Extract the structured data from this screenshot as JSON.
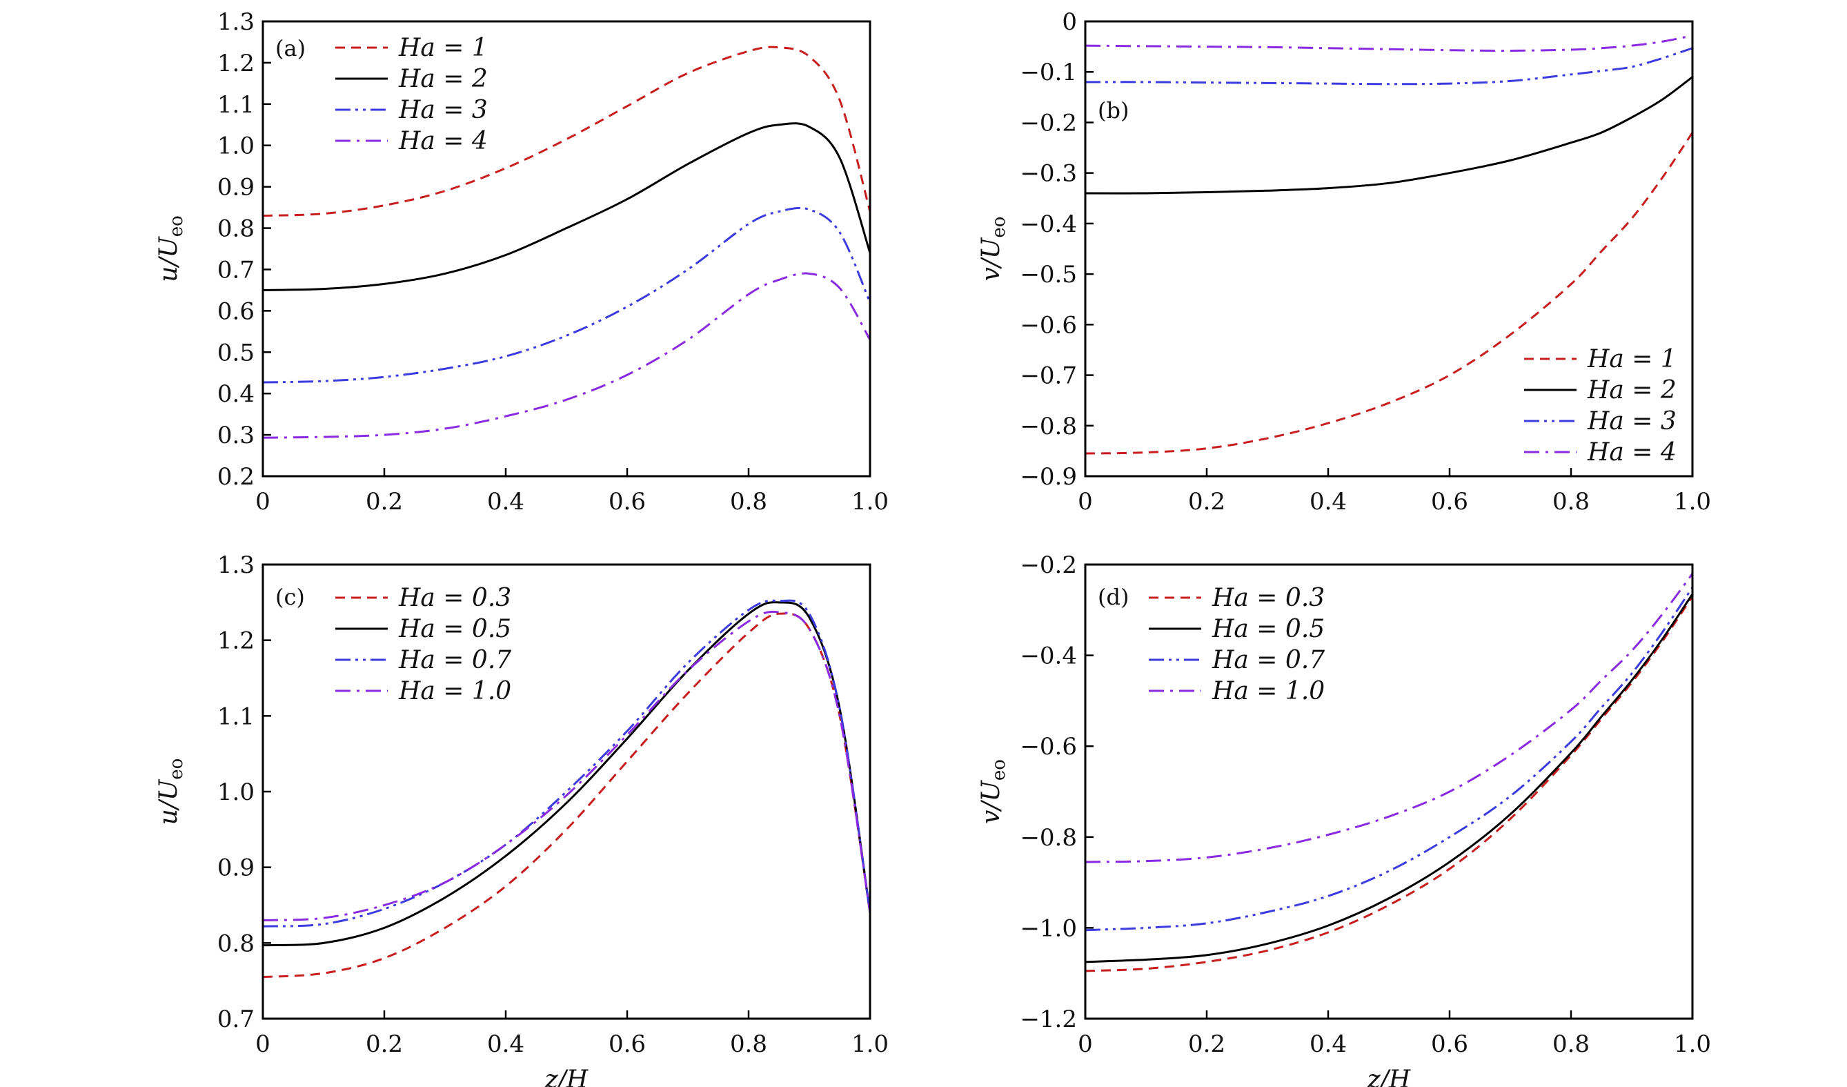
{
  "chart_data": [
    {
      "type": "line",
      "panel_label": "(a)",
      "xlabel": "",
      "ylabel": {
        "main": "u/U",
        "sub": "eo"
      },
      "xlim": [
        0,
        1.0
      ],
      "ylim": [
        0.2,
        1.3
      ],
      "xticks": [
        "0",
        "0.2",
        "0.4",
        "0.6",
        "0.8",
        "1.0"
      ],
      "yticks": [
        "0.2",
        "0.3",
        "0.4",
        "0.5",
        "0.6",
        "0.7",
        "0.8",
        "0.9",
        "1.0",
        "1.1",
        "1.2",
        "1.3"
      ],
      "legend_position": "top-left",
      "x": [
        0,
        0.1,
        0.2,
        0.3,
        0.4,
        0.5,
        0.6,
        0.7,
        0.8,
        0.85,
        0.9,
        0.95,
        1.0
      ],
      "series": [
        {
          "name": "Ha = 1",
          "color": "#c81e1e",
          "style": "dashed",
          "values": [
            0.83,
            0.835,
            0.855,
            0.89,
            0.945,
            1.015,
            1.095,
            1.175,
            1.228,
            1.237,
            1.215,
            1.11,
            0.84
          ]
        },
        {
          "name": "Ha = 2",
          "color": "#000000",
          "style": "solid",
          "values": [
            0.65,
            0.653,
            0.665,
            0.69,
            0.735,
            0.8,
            0.87,
            0.955,
            1.03,
            1.05,
            1.045,
            0.97,
            0.74
          ]
        },
        {
          "name": "Ha = 3",
          "color": "#3b3be0",
          "style": "dash-dot-dot",
          "values": [
            0.427,
            0.43,
            0.44,
            0.46,
            0.49,
            0.54,
            0.61,
            0.7,
            0.81,
            0.84,
            0.845,
            0.79,
            0.62
          ]
        },
        {
          "name": "Ha = 4",
          "color": "#8a2be2",
          "style": "dash-dot",
          "values": [
            0.293,
            0.295,
            0.3,
            0.315,
            0.345,
            0.385,
            0.445,
            0.53,
            0.64,
            0.675,
            0.69,
            0.655,
            0.53
          ]
        }
      ]
    },
    {
      "type": "line",
      "panel_label": "(b)",
      "xlabel": "",
      "ylabel": {
        "main": "v/U",
        "sub": "eo"
      },
      "xlim": [
        0,
        1.0
      ],
      "ylim": [
        -0.9,
        0
      ],
      "xticks": [
        "0",
        "0.2",
        "0.4",
        "0.6",
        "0.8",
        "1.0"
      ],
      "yticks": [
        "−0.9",
        "−0.8",
        "−0.7",
        "−0.6",
        "−0.5",
        "−0.4",
        "−0.3",
        "−0.2",
        "−0.1",
        "0"
      ],
      "legend_position": "bottom-right",
      "x": [
        0,
        0.1,
        0.2,
        0.3,
        0.4,
        0.5,
        0.6,
        0.7,
        0.8,
        0.85,
        0.9,
        0.95,
        1.0
      ],
      "series": [
        {
          "name": "Ha = 1",
          "color": "#c81e1e",
          "style": "dashed",
          "values": [
            -0.855,
            -0.853,
            -0.845,
            -0.825,
            -0.795,
            -0.755,
            -0.7,
            -0.62,
            -0.52,
            -0.455,
            -0.39,
            -0.31,
            -0.22
          ]
        },
        {
          "name": "Ha = 2",
          "color": "#000000",
          "style": "solid",
          "values": [
            -0.34,
            -0.34,
            -0.338,
            -0.335,
            -0.33,
            -0.32,
            -0.3,
            -0.275,
            -0.24,
            -0.22,
            -0.19,
            -0.155,
            -0.11
          ]
        },
        {
          "name": "Ha = 3",
          "color": "#3b3be0",
          "style": "dash-dot-dot",
          "values": [
            -0.12,
            -0.12,
            -0.121,
            -0.122,
            -0.123,
            -0.124,
            -0.123,
            -0.118,
            -0.105,
            -0.098,
            -0.09,
            -0.073,
            -0.053
          ]
        },
        {
          "name": "Ha = 4",
          "color": "#8a2be2",
          "style": "dash-dot",
          "values": [
            -0.048,
            -0.049,
            -0.05,
            -0.051,
            -0.053,
            -0.055,
            -0.057,
            -0.058,
            -0.056,
            -0.053,
            -0.048,
            -0.04,
            -0.028
          ]
        }
      ]
    },
    {
      "type": "line",
      "panel_label": "(c)",
      "xlabel": "z/H",
      "ylabel": {
        "main": "u/U",
        "sub": "eo"
      },
      "xlim": [
        0,
        1.0
      ],
      "ylim": [
        0.7,
        1.3
      ],
      "xticks": [
        "0",
        "0.2",
        "0.4",
        "0.6",
        "0.8",
        "1.0"
      ],
      "yticks": [
        "0.7",
        "0.8",
        "0.9",
        "1.0",
        "1.1",
        "1.2",
        "1.3"
      ],
      "legend_position": "top-left",
      "x": [
        0,
        0.1,
        0.2,
        0.3,
        0.4,
        0.5,
        0.6,
        0.7,
        0.8,
        0.85,
        0.9,
        0.95,
        1.0
      ],
      "series": [
        {
          "name": "Ha = 0.3",
          "color": "#c81e1e",
          "style": "dashed",
          "values": [
            0.755,
            0.76,
            0.78,
            0.82,
            0.875,
            0.95,
            1.04,
            1.13,
            1.21,
            1.235,
            1.215,
            1.1,
            0.84
          ]
        },
        {
          "name": "Ha = 0.5",
          "color": "#000000",
          "style": "solid",
          "values": [
            0.797,
            0.8,
            0.82,
            0.86,
            0.915,
            0.985,
            1.07,
            1.16,
            1.235,
            1.25,
            1.23,
            1.11,
            0.84
          ]
        },
        {
          "name": "Ha = 0.7",
          "color": "#3b3be0",
          "style": "dash-dot-dot",
          "values": [
            0.822,
            0.825,
            0.845,
            0.88,
            0.93,
            1.0,
            1.08,
            1.17,
            1.24,
            1.252,
            1.235,
            1.11,
            0.84
          ]
        },
        {
          "name": "Ha = 1.0",
          "color": "#8a2be2",
          "style": "dash-dot",
          "values": [
            0.83,
            0.833,
            0.85,
            0.88,
            0.93,
            0.995,
            1.075,
            1.16,
            1.225,
            1.237,
            1.215,
            1.1,
            0.84
          ]
        }
      ]
    },
    {
      "type": "line",
      "panel_label": "(d)",
      "xlabel": "z/H",
      "ylabel": {
        "main": "v/U",
        "sub": "eo"
      },
      "xlim": [
        0,
        1.0
      ],
      "ylim": [
        -1.2,
        -0.2
      ],
      "xticks": [
        "0",
        "0.2",
        "0.4",
        "0.6",
        "0.8",
        "1.0"
      ],
      "yticks": [
        "−1.2",
        "−1.0",
        "−0.8",
        "−0.6",
        "−0.4",
        "−0.2"
      ],
      "legend_position": "top-left",
      "x": [
        0,
        0.1,
        0.2,
        0.3,
        0.4,
        0.5,
        0.6,
        0.7,
        0.8,
        0.85,
        0.9,
        0.95,
        1.0
      ],
      "series": [
        {
          "name": "Ha = 0.3",
          "color": "#c81e1e",
          "style": "dashed",
          "values": [
            -1.095,
            -1.09,
            -1.075,
            -1.05,
            -1.01,
            -0.95,
            -0.87,
            -0.76,
            -0.62,
            -0.54,
            -0.46,
            -0.37,
            -0.27
          ]
        },
        {
          "name": "Ha = 0.5",
          "color": "#000000",
          "style": "solid",
          "values": [
            -1.075,
            -1.07,
            -1.06,
            -1.035,
            -0.995,
            -0.935,
            -0.855,
            -0.75,
            -0.615,
            -0.535,
            -0.455,
            -0.365,
            -0.265
          ]
        },
        {
          "name": "Ha = 0.7",
          "color": "#3b3be0",
          "style": "dash-dot-dot",
          "values": [
            -1.005,
            -1.0,
            -0.99,
            -0.965,
            -0.93,
            -0.875,
            -0.8,
            -0.71,
            -0.59,
            -0.515,
            -0.44,
            -0.35,
            -0.25
          ]
        },
        {
          "name": "Ha = 1.0",
          "color": "#8a2be2",
          "style": "dash-dot",
          "values": [
            -0.855,
            -0.853,
            -0.845,
            -0.825,
            -0.795,
            -0.755,
            -0.7,
            -0.62,
            -0.52,
            -0.455,
            -0.39,
            -0.31,
            -0.22
          ]
        }
      ]
    }
  ]
}
